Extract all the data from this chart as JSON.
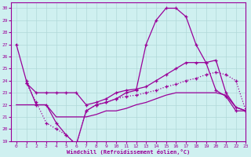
{
  "xlabel": "Windchill (Refroidissement éolien,°C)",
  "xlim": [
    -0.5,
    23
  ],
  "ylim": [
    19,
    30.5
  ],
  "yticks": [
    19,
    20,
    21,
    22,
    23,
    24,
    25,
    26,
    27,
    28,
    29,
    30
  ],
  "xticks": [
    0,
    1,
    2,
    3,
    4,
    5,
    6,
    7,
    8,
    9,
    10,
    11,
    12,
    13,
    14,
    15,
    16,
    17,
    18,
    19,
    20,
    21,
    22,
    23
  ],
  "background_color": "#cff0f0",
  "line_color": "#990099",
  "grid_color": "#b0d8d8",
  "line1_x": [
    0,
    1,
    2,
    3,
    4,
    5,
    6,
    7,
    8,
    9,
    10,
    11,
    12,
    13,
    14,
    15,
    16,
    17,
    18,
    19,
    20,
    21,
    22,
    23
  ],
  "line1_y": [
    27,
    24,
    22,
    22,
    20.5,
    19.5,
    18.7,
    21.5,
    22,
    22.2,
    22.5,
    23,
    23.2,
    27,
    29,
    30,
    30,
    29.3,
    27,
    25.5,
    23.2,
    22.7,
    21.5,
    21.5
  ],
  "line2_x": [
    1,
    2,
    3,
    4,
    5,
    6,
    7,
    8,
    9,
    10,
    11,
    12,
    13,
    14,
    15,
    16,
    17,
    18,
    19,
    20,
    21,
    22,
    23
  ],
  "line2_y": [
    23.8,
    23,
    23,
    23,
    23,
    23,
    22,
    22.2,
    22.5,
    23,
    23.2,
    23.3,
    23.5,
    24,
    24.5,
    25,
    25.5,
    25.5,
    25.5,
    25.7,
    23,
    21.8,
    21.5
  ],
  "line3_x": [
    0,
    1,
    2,
    3,
    4,
    5,
    6,
    7,
    8,
    9,
    10,
    11,
    12,
    13,
    14,
    15,
    16,
    17,
    18,
    19,
    20,
    21,
    22,
    23
  ],
  "line3_y": [
    22,
    22,
    22,
    22,
    21,
    21,
    21,
    21,
    21.2,
    21.5,
    21.5,
    21.7,
    22,
    22.2,
    22.5,
    22.8,
    23,
    23,
    23,
    23,
    23,
    22.8,
    21.8,
    21.5
  ],
  "line4_x": [
    1,
    2,
    3,
    4,
    5,
    6,
    7,
    8,
    9,
    10,
    11,
    12,
    13,
    14,
    15,
    16,
    17,
    18,
    19,
    20,
    21,
    22,
    23
  ],
  "line4_y": [
    23.8,
    22.2,
    20.5,
    20,
    19.5,
    18.7,
    21.5,
    22,
    22.2,
    22.5,
    22.7,
    22.8,
    23,
    23.2,
    23.5,
    23.7,
    24,
    24.2,
    24.5,
    24.7,
    24.5,
    24,
    21.5
  ]
}
